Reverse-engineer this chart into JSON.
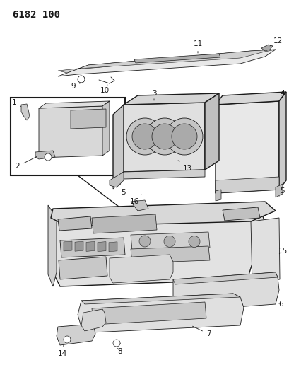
{
  "title_code": "6182 100",
  "bg_color": "#ffffff",
  "line_color": "#1a1a1a",
  "title_fontsize": 10,
  "label_fontsize": 7.5,
  "fig_width": 4.1,
  "fig_height": 5.33,
  "dpi": 100
}
